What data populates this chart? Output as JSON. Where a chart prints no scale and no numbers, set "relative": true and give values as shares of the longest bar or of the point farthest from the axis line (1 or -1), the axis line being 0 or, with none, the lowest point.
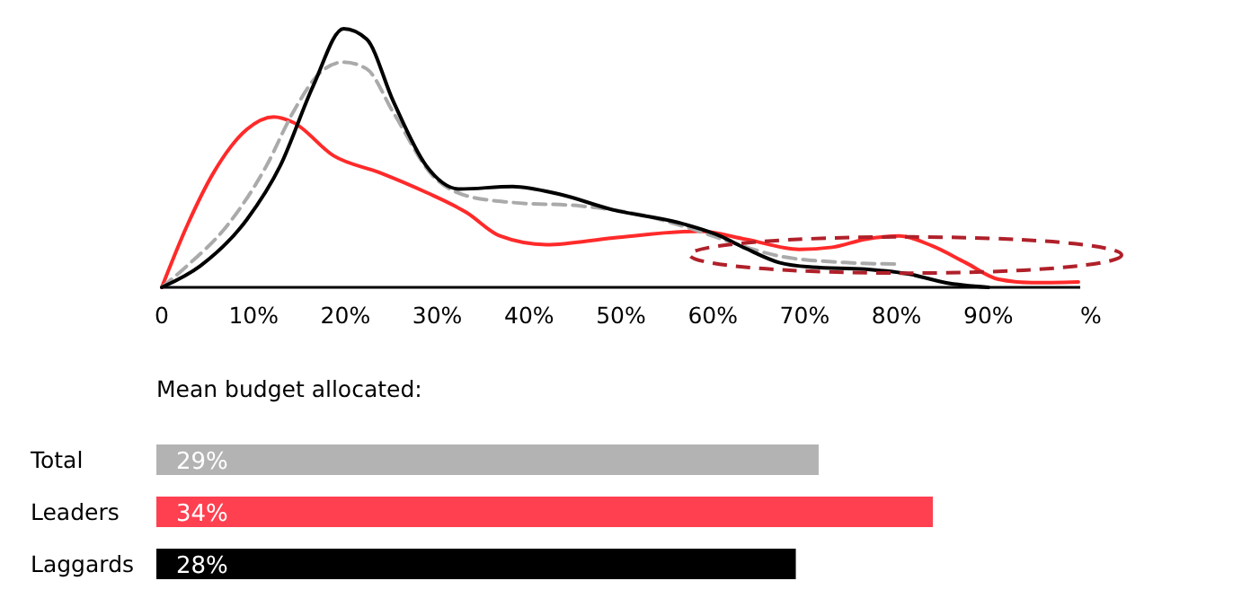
{
  "chart_data": [
    {
      "type": "line",
      "relative": true,
      "xlabel": "%",
      "xlim": [
        0,
        100
      ],
      "xticks": [
        0,
        {
          "value": 10,
          "label": "10%"
        },
        {
          "value": 20,
          "label": "20%"
        },
        {
          "value": 30,
          "label": "30%"
        },
        {
          "value": 40,
          "label": "40%"
        },
        {
          "value": 50,
          "label": "50%"
        },
        {
          "value": 60,
          "label": "60%"
        },
        {
          "value": 70,
          "label": "70%"
        },
        {
          "value": 80,
          "label": "80%"
        },
        {
          "value": 90,
          "label": "90%"
        }
      ],
      "series": [
        {
          "color": "#ff2a2a",
          "line_style": "solid",
          "x": [
            0,
            2.75,
            5.65,
            9.3,
            12.2,
            14.3,
            18.7,
            23.7,
            28.8,
            33.2,
            36.8,
            41.9,
            49.1,
            58.5,
            63.6,
            69.4,
            73.0,
            76.6,
            80.3,
            83.9,
            87.5,
            91.1,
            94.7,
            99.8
          ],
          "values": [
            0,
            0.238,
            0.444,
            0.612,
            0.659,
            0.638,
            0.509,
            0.444,
            0.367,
            0.289,
            0.199,
            0.165,
            0.191,
            0.217,
            0.186,
            0.147,
            0.155,
            0.186,
            0.199,
            0.16,
            0.096,
            0.031,
            0.018,
            0.021
          ]
        },
        {
          "color": "#aaaaaa",
          "line_style": "dashed",
          "x": [
            0,
            2.75,
            7.1,
            11.4,
            14.3,
            17.3,
            19.8,
            22.3,
            25.2,
            29.5,
            33.2,
            38.2,
            45.5,
            52.7,
            57.8,
            62.1,
            67.2,
            74.4,
            79.9
          ],
          "values": [
            0,
            0.083,
            0.238,
            0.47,
            0.677,
            0.832,
            0.871,
            0.845,
            0.677,
            0.432,
            0.354,
            0.328,
            0.315,
            0.276,
            0.225,
            0.173,
            0.121,
            0.096,
            0.09
          ]
        },
        {
          "color": "#000000",
          "line_style": "solid",
          "x": [
            0,
            4.2,
            9.3,
            12.9,
            16.5,
            19.8,
            22.3,
            25.2,
            28.8,
            32.4,
            38.2,
            43.3,
            49.1,
            56.3,
            60.7,
            63.6,
            67.2,
            70.8,
            76.6,
            81.7,
            85.3,
            90
          ],
          "values": [
            0,
            0.083,
            0.264,
            0.47,
            0.78,
            1,
            0.96,
            0.72,
            0.47,
            0.38,
            0.39,
            0.36,
            0.3,
            0.25,
            0.2,
            0.15,
            0.096,
            0.078,
            0.07,
            0.049,
            0.018,
            0
          ]
        }
      ]
    },
    {
      "type": "bar",
      "orientation": "horizontal",
      "title": "Mean budget allocated:",
      "categories": [
        "Total",
        "Leaders",
        "Laggards"
      ],
      "values": [
        29,
        34,
        28
      ],
      "value_labels": [
        "29%",
        "34%",
        "28%"
      ],
      "colors": [
        "#b3b3b3",
        "#ff4050",
        "#000000"
      ]
    }
  ]
}
